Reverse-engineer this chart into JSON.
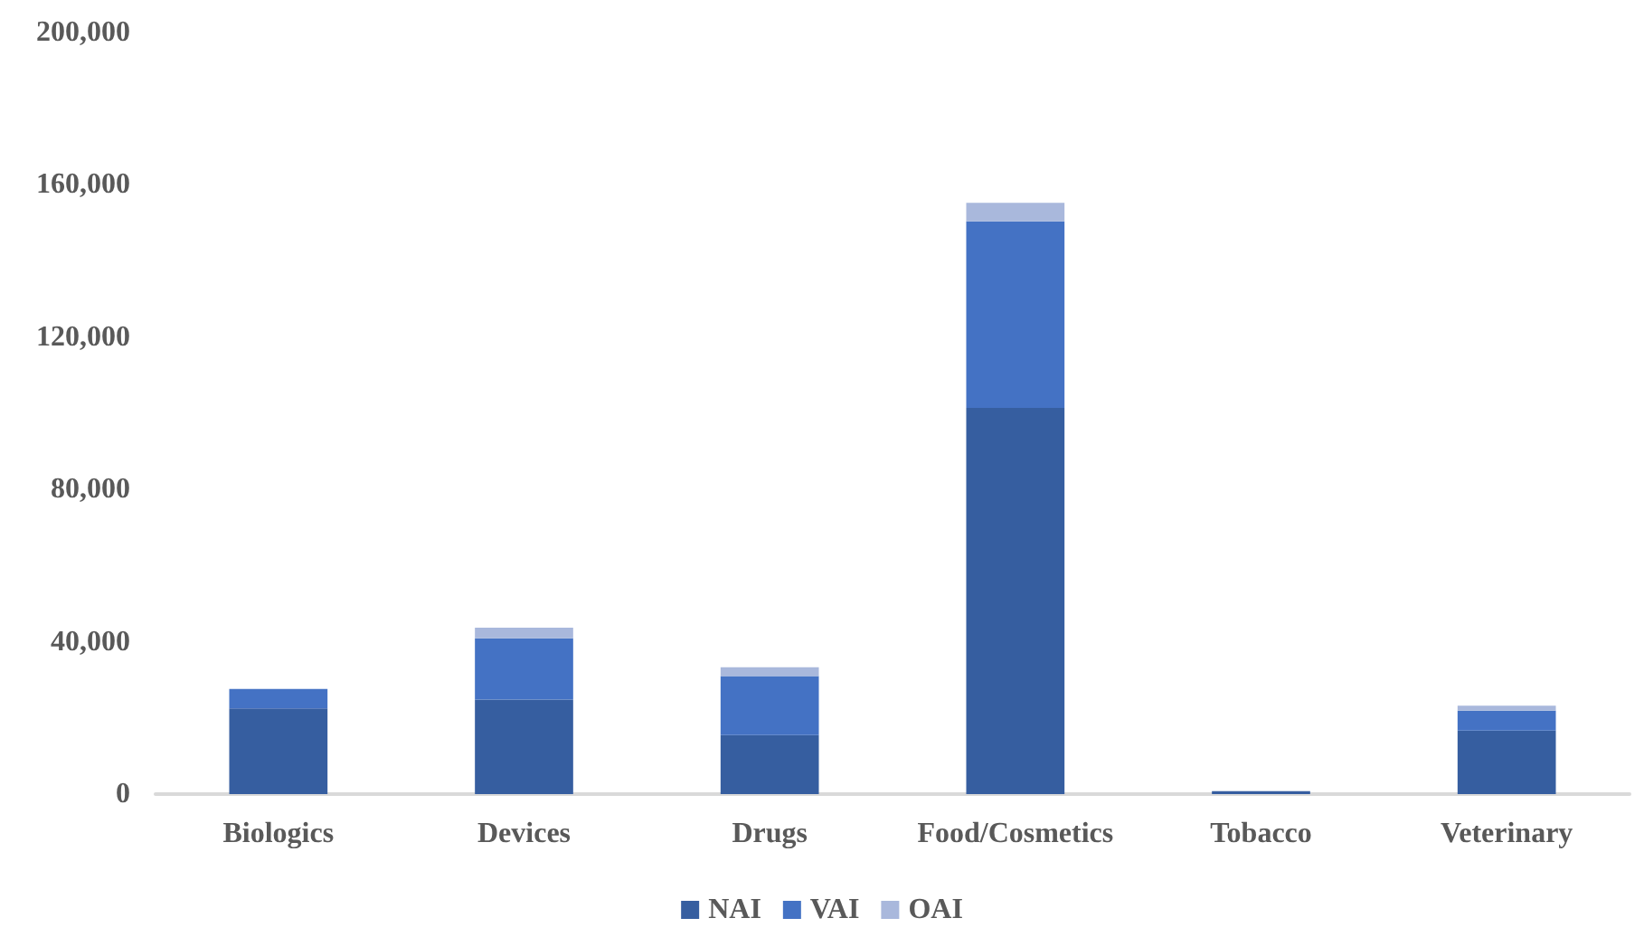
{
  "chart_data": {
    "type": "bar",
    "stacked": true,
    "categories": [
      "Biologics",
      "Devices",
      "Drugs",
      "Food/Cosmetics",
      "Tobacco",
      "Veterinary"
    ],
    "series": [
      {
        "name": "NAI",
        "color": "#365ea0",
        "values": [
          22500,
          24800,
          15500,
          101400,
          800,
          16700
        ]
      },
      {
        "name": "VAI",
        "color": "#4472c4",
        "values": [
          5100,
          16100,
          15500,
          49000,
          null,
          5200
        ]
      },
      {
        "name": "OAI",
        "color": "#a9b8dc",
        "values": [
          null,
          2800,
          2300,
          4900,
          null,
          1300
        ]
      }
    ],
    "ylim": [
      0,
      200000
    ],
    "yticks": [
      {
        "value": 0,
        "label": "0"
      },
      {
        "value": 40000,
        "label": "40,000"
      },
      {
        "value": 80000,
        "label": "80,000"
      },
      {
        "value": 120000,
        "label": "120,000"
      },
      {
        "value": 160000,
        "label": "160,000"
      },
      {
        "value": 200000,
        "label": "200,000"
      }
    ],
    "grid": false,
    "legend": "bottom"
  }
}
